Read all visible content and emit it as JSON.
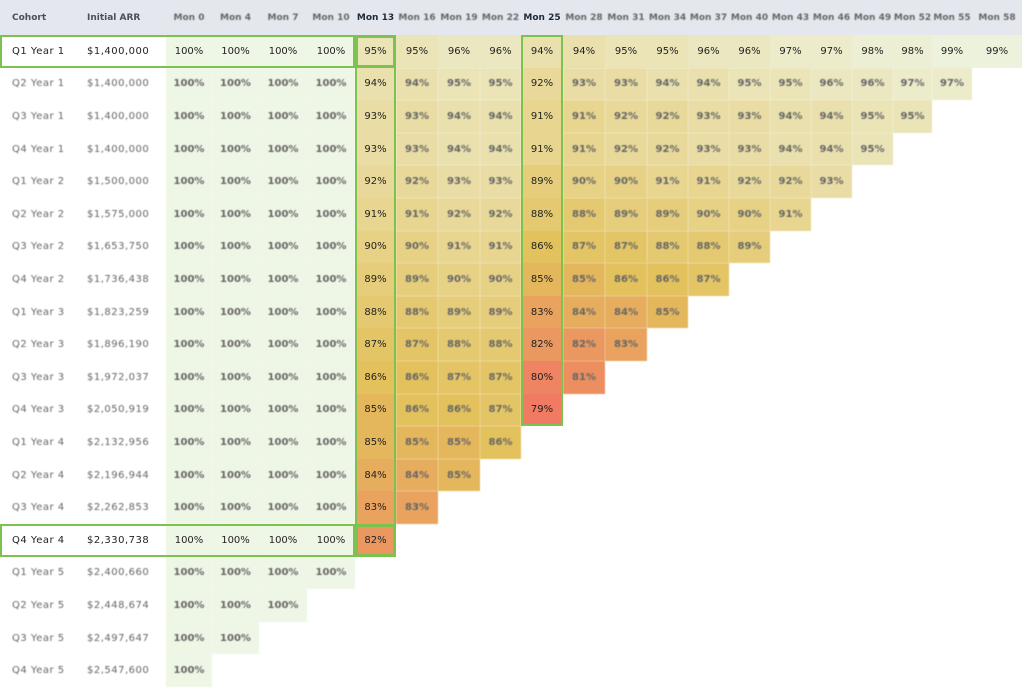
{
  "chart_data": {
    "type": "heatmap",
    "title": "",
    "header": {
      "cohort": "Cohort",
      "initial_arr": "Initial ARR",
      "months": [
        "Mon 0",
        "Mon 4",
        "Mon 7",
        "Mon 10",
        "Mon 13",
        "Mon 16",
        "Mon 19",
        "Mon 22",
        "Mon 25",
        "Mon 28",
        "Mon 31",
        "Mon 34",
        "Mon 37",
        "Mon 40",
        "Mon 43",
        "Mon 46",
        "Mon 49",
        "Mon 52",
        "Mon 55",
        "Mon 58"
      ]
    },
    "rows": [
      {
        "cohort": "Q1 Year 1",
        "arr": "$1,400,000",
        "values": [
          100,
          100,
          100,
          100,
          95,
          95,
          96,
          96,
          94,
          94,
          95,
          95,
          96,
          96,
          97,
          97,
          98,
          98,
          99,
          99
        ]
      },
      {
        "cohort": "Q2 Year 1",
        "arr": "$1,400,000",
        "values": [
          100,
          100,
          100,
          100,
          94,
          94,
          95,
          95,
          92,
          93,
          93,
          94,
          94,
          95,
          95,
          96,
          96,
          97,
          97
        ]
      },
      {
        "cohort": "Q3 Year 1",
        "arr": "$1,400,000",
        "values": [
          100,
          100,
          100,
          100,
          93,
          93,
          94,
          94,
          91,
          91,
          92,
          92,
          93,
          93,
          94,
          94,
          95,
          95
        ]
      },
      {
        "cohort": "Q4 Year 1",
        "arr": "$1,400,000",
        "values": [
          100,
          100,
          100,
          100,
          93,
          93,
          94,
          94,
          91,
          91,
          92,
          92,
          93,
          93,
          94,
          94,
          95
        ]
      },
      {
        "cohort": "Q1 Year 2",
        "arr": "$1,500,000",
        "values": [
          100,
          100,
          100,
          100,
          92,
          92,
          93,
          93,
          89,
          90,
          90,
          91,
          91,
          92,
          92,
          93
        ]
      },
      {
        "cohort": "Q2 Year 2",
        "arr": "$1,575,000",
        "values": [
          100,
          100,
          100,
          100,
          91,
          91,
          92,
          92,
          88,
          88,
          89,
          89,
          90,
          90,
          91
        ]
      },
      {
        "cohort": "Q3 Year 2",
        "arr": "$1,653,750",
        "values": [
          100,
          100,
          100,
          100,
          90,
          90,
          91,
          91,
          86,
          87,
          87,
          88,
          88,
          89
        ]
      },
      {
        "cohort": "Q4 Year 2",
        "arr": "$1,736,438",
        "values": [
          100,
          100,
          100,
          100,
          89,
          89,
          90,
          90,
          85,
          85,
          86,
          86,
          87
        ]
      },
      {
        "cohort": "Q1 Year 3",
        "arr": "$1,823,259",
        "values": [
          100,
          100,
          100,
          100,
          88,
          88,
          89,
          89,
          83,
          84,
          84,
          85
        ]
      },
      {
        "cohort": "Q2 Year 3",
        "arr": "$1,896,190",
        "values": [
          100,
          100,
          100,
          100,
          87,
          87,
          88,
          88,
          82,
          82,
          83
        ]
      },
      {
        "cohort": "Q3 Year 3",
        "arr": "$1,972,037",
        "values": [
          100,
          100,
          100,
          100,
          86,
          86,
          87,
          87,
          80,
          81
        ]
      },
      {
        "cohort": "Q4 Year 3",
        "arr": "$2,050,919",
        "values": [
          100,
          100,
          100,
          100,
          85,
          86,
          86,
          87,
          79
        ]
      },
      {
        "cohort": "Q1 Year 4",
        "arr": "$2,132,956",
        "values": [
          100,
          100,
          100,
          100,
          85,
          85,
          85,
          86
        ]
      },
      {
        "cohort": "Q2 Year 4",
        "arr": "$2,196,944",
        "values": [
          100,
          100,
          100,
          100,
          84,
          84,
          85
        ]
      },
      {
        "cohort": "Q3 Year 4",
        "arr": "$2,262,853",
        "values": [
          100,
          100,
          100,
          100,
          83,
          83
        ]
      },
      {
        "cohort": "Q4 Year 4",
        "arr": "$2,330,738",
        "values": [
          100,
          100,
          100,
          100,
          82
        ]
      },
      {
        "cohort": "Q1 Year 5",
        "arr": "$2,400,660",
        "values": [
          100,
          100,
          100,
          100
        ]
      },
      {
        "cohort": "Q2 Year 5",
        "arr": "$2,448,674",
        "values": [
          100,
          100,
          100
        ]
      },
      {
        "cohort": "Q3 Year 5",
        "arr": "$2,497,647",
        "values": [
          100,
          100
        ]
      },
      {
        "cohort": "Q4 Year 5",
        "arr": "$2,547,600",
        "values": [
          100
        ]
      }
    ],
    "value_suffix": "%",
    "colors": {
      "header_bg": "#e4e8ee",
      "high": "#eef6e6",
      "mid": "#e3c15c",
      "low": "#f07a62",
      "highlight_border": "#7cc24e"
    },
    "highlight": {
      "rows": [
        "Q1 Year 1",
        "Q4 Year 4"
      ],
      "columns": [
        "Mon 13",
        "Mon 25"
      ]
    }
  }
}
